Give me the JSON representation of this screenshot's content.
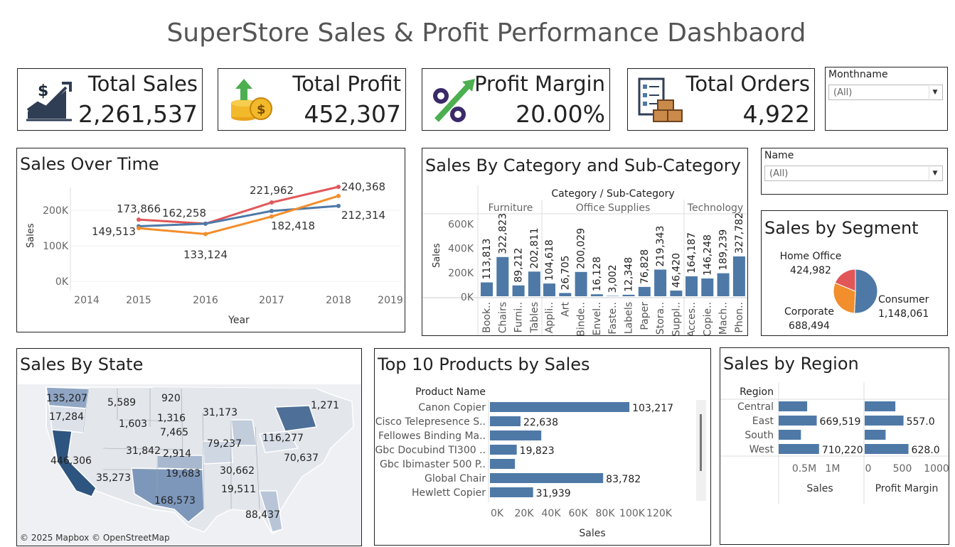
{
  "dashboard_title": "SuperStore Sales & Profit Performance Dashbaord",
  "kpis": {
    "sales": {
      "label": "Total Sales",
      "value": "2,261,537",
      "icon": "sales-growth-icon"
    },
    "profit": {
      "label": "Total Profit",
      "value": "452,307",
      "icon": "money-coins-icon"
    },
    "margin": {
      "label": "Profit Margin",
      "value": "20.00%",
      "icon": "percent-icon"
    },
    "orders": {
      "label": "Total Orders",
      "value": "4,922",
      "icon": "orders-boxes-icon"
    }
  },
  "filters": {
    "monthname": {
      "label": "Monthname",
      "value": "(All)"
    },
    "name": {
      "label": "Name",
      "value": "(All)"
    }
  },
  "colors": {
    "blue": "#4e79a7",
    "orange": "#f28e2b",
    "red": "#e15759",
    "light_fill": "#e6e9ef"
  },
  "map": {
    "title": "Sales By State",
    "credit": "© 2025 Mapbox © OpenStreetMap",
    "labels": [
      "135,207",
      "5,589",
      "920",
      "17,284",
      "1,316",
      "31,173",
      "1,271",
      "1,603",
      "7,465",
      "79,237",
      "116,277",
      "31,842",
      "2,914",
      "70,637",
      "446,306",
      "19,683",
      "30,662",
      "35,273",
      "168,573",
      "19,511",
      "88,437"
    ]
  },
  "chart_data": [
    {
      "type": "line",
      "title": "Sales Over Time",
      "xlabel": "Year",
      "ylabel": "Sales",
      "x": [
        2015,
        2016,
        2017,
        2018
      ],
      "x_ticks": [
        "2014",
        "2015",
        "2016",
        "2017",
        "2018",
        "2019"
      ],
      "y_ticks": [
        "0K",
        "100K",
        "200K"
      ],
      "ylim": [
        0,
        250000
      ],
      "series": [
        {
          "color": "#e15759",
          "values": [
            173866,
            162258,
            221962,
            266000
          ],
          "labels": [
            "173,866",
            "",
            "221,962",
            ""
          ]
        },
        {
          "color": "#4e79a7",
          "values": [
            155000,
            162258,
            198000,
            212314
          ],
          "labels": [
            "",
            "162,258",
            "",
            "212,314"
          ]
        },
        {
          "color": "#f28e2b",
          "values": [
            149513,
            133124,
            182418,
            240368
          ],
          "labels": [
            "149,513",
            "133,124",
            "182,418",
            "240,368"
          ]
        }
      ]
    },
    {
      "type": "bar",
      "title": "Sales By Category and Sub-Category",
      "header": "Category / Sub-Category",
      "ylabel": "Sales",
      "y_ticks": [
        "0K",
        "200K",
        "400K",
        "600K"
      ],
      "ylim": [
        0,
        700000
      ],
      "groups": [
        {
          "name": "Furniture",
          "categories": [
            "Book..",
            "Chairs",
            "Furni..",
            "Tables"
          ],
          "values": [
            113813,
            322823,
            89212,
            202811
          ],
          "labels": [
            "113,813",
            "322,823",
            "89,212",
            "202,811"
          ]
        },
        {
          "name": "Office Supplies",
          "categories": [
            "Appli..",
            "Art",
            "Binde..",
            "Envel..",
            "Faste..",
            "Labels",
            "Paper",
            "Stora..",
            "Suppl.."
          ],
          "values": [
            104618,
            26705,
            200029,
            16128,
            3002,
            12348,
            76828,
            219343,
            46420
          ],
          "labels": [
            "104,618",
            "26,705",
            "200,029",
            "16,128",
            "3,002",
            "12,348",
            "76,828",
            "219,343",
            "46,420"
          ]
        },
        {
          "name": "Technology",
          "categories": [
            "Acces..",
            "Copie..",
            "Mach..",
            "Phon.."
          ],
          "values": [
            164187,
            146248,
            189239,
            327782
          ],
          "labels": [
            "164,187",
            "146,248",
            "189,239",
            "327,782"
          ]
        }
      ]
    },
    {
      "type": "pie",
      "title": "Sales by Segment",
      "slices": [
        {
          "name": "Consumer",
          "value": 1148061,
          "label": "1,148,061",
          "color": "#4e79a7"
        },
        {
          "name": "Corporate",
          "value": 688494,
          "label": "688,494",
          "color": "#f28e2b"
        },
        {
          "name": "Home Office",
          "value": 424982,
          "label": "424,982",
          "color": "#e15759"
        }
      ]
    },
    {
      "type": "bar",
      "title": "Top 10 Products by Sales",
      "orientation": "horizontal",
      "row_header": "Product Name",
      "xlabel": "Sales",
      "x_ticks": [
        "0K",
        "20K",
        "40K",
        "60K",
        "80K",
        "100K",
        "120K"
      ],
      "xlim": [
        0,
        120000
      ],
      "categories": [
        "Canon Copier",
        "Cisco Telepresence S..",
        "Fellowes Binding Ma..",
        "Gbc Docubind TI300 ..",
        "Gbc Ibimaster 500 P..",
        "Global Chair",
        "Hewlett Copier"
      ],
      "values": [
        103217,
        22638,
        38000,
        19823,
        18500,
        83782,
        31939
      ],
      "labels": [
        "103,217",
        "22,638",
        "",
        "19,823",
        "",
        "83,782",
        "31,939"
      ]
    },
    {
      "type": "bar",
      "title": "Sales by Region",
      "orientation": "horizontal",
      "row_header": "Region",
      "categories": [
        "Central",
        "East",
        "South",
        "West"
      ],
      "panels": [
        {
          "xlabel": "Sales",
          "x_ticks": [
            "0.5M",
            "1M"
          ],
          "xlim": [
            0,
            1200000
          ],
          "values": [
            501240,
            669519,
            391722,
            710220
          ],
          "labels": [
            "",
            "669,519",
            "",
            "710,220"
          ]
        },
        {
          "xlabel": "Profit Margin",
          "x_ticks": [
            "0",
            "500",
            "1000"
          ],
          "xlim": [
            0,
            1100
          ],
          "values": [
            440,
            557.0,
            300,
            628.0
          ],
          "labels": [
            "",
            "557.0",
            "",
            "628.0"
          ]
        }
      ]
    }
  ]
}
